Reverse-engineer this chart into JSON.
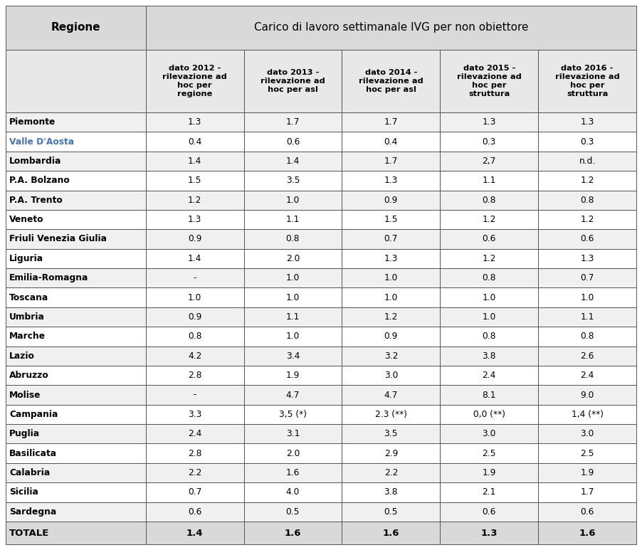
{
  "title_col1": "Regione",
  "title_col2": "Carico di lavoro settimanale IVG per non obiettore",
  "col_headers": [
    "dato 2012 -\nrilevazione ad\nhoc per\nregione",
    "dato 2013 -\nrilevazione ad\nhoc per asl",
    "dato 2014 -\nrilevazione ad\nhoc per asl",
    "dato 2015 -\nrilevazione ad\nhoc per\nstruttura",
    "dato 2016 -\nrilevazione ad\nhoc per\nstruttura"
  ],
  "rows": [
    [
      "Piemonte",
      "1.3",
      "1.7",
      "1.7",
      "1.3",
      "1.3"
    ],
    [
      "Valle D'Aosta",
      "0.4",
      "0.6",
      "0.4",
      "0.3",
      "0.3"
    ],
    [
      "Lombardia",
      "1.4",
      "1.4",
      "1.7",
      "2,7",
      "n.d."
    ],
    [
      "P.A. Bolzano",
      "1.5",
      "3.5",
      "1.3",
      "1.1",
      "1.2"
    ],
    [
      "P.A. Trento",
      "1.2",
      "1.0",
      "0.9",
      "0.8",
      "0.8"
    ],
    [
      "Veneto",
      "1.3",
      "1.1",
      "1.5",
      "1.2",
      "1.2"
    ],
    [
      "Friuli Venezia Giulia",
      "0.9",
      "0.8",
      "0.7",
      "0.6",
      "0.6"
    ],
    [
      "Liguria",
      "1.4",
      "2.0",
      "1.3",
      "1.2",
      "1.3"
    ],
    [
      "Emilia-Romagna",
      "-",
      "1.0",
      "1.0",
      "0.8",
      "0.7"
    ],
    [
      "Toscana",
      "1.0",
      "1.0",
      "1.0",
      "1.0",
      "1.0"
    ],
    [
      "Umbria",
      "0.9",
      "1.1",
      "1.2",
      "1.0",
      "1.1"
    ],
    [
      "Marche",
      "0.8",
      "1.0",
      "0.9",
      "0.8",
      "0.8"
    ],
    [
      "Lazio",
      "4.2",
      "3.4",
      "3.2",
      "3.8",
      "2.6"
    ],
    [
      "Abruzzo",
      "2.8",
      "1.9",
      "3.0",
      "2.4",
      "2.4"
    ],
    [
      "Molise",
      "-",
      "4.7",
      "4.7",
      "8.1",
      "9.0"
    ],
    [
      "Campania",
      "3.3",
      "3,5 (*)",
      "2.3 (**)",
      "0,0 (**)",
      "1,4 (**)"
    ],
    [
      "Puglia",
      "2.4",
      "3.1",
      "3.5",
      "3.0",
      "3.0"
    ],
    [
      "Basilicata",
      "2.8",
      "2.0",
      "2.9",
      "2.5",
      "2.5"
    ],
    [
      "Calabria",
      "2.2",
      "1.6",
      "2.2",
      "1.9",
      "1.9"
    ],
    [
      "Sicilia",
      "0.7",
      "4.0",
      "3.8",
      "2.1",
      "1.7"
    ],
    [
      "Sardegna",
      "0.6",
      "0.5",
      "0.5",
      "0.6",
      "0.6"
    ]
  ],
  "total_row": [
    "TOTALE",
    "1.4",
    "1.6",
    "1.6",
    "1.3",
    "1.6"
  ],
  "bg_header": "#d9d9d9",
  "bg_subheader": "#e8e8e8",
  "bg_data_odd": "#f0f0f0",
  "bg_data_even": "#ffffff",
  "bg_total": "#d9d9d9",
  "border_color": "#555555",
  "text_color": "#000000",
  "valle_daosta_color": "#4472c4",
  "fig_width": 9.02,
  "fig_height": 7.73,
  "dpi": 100
}
